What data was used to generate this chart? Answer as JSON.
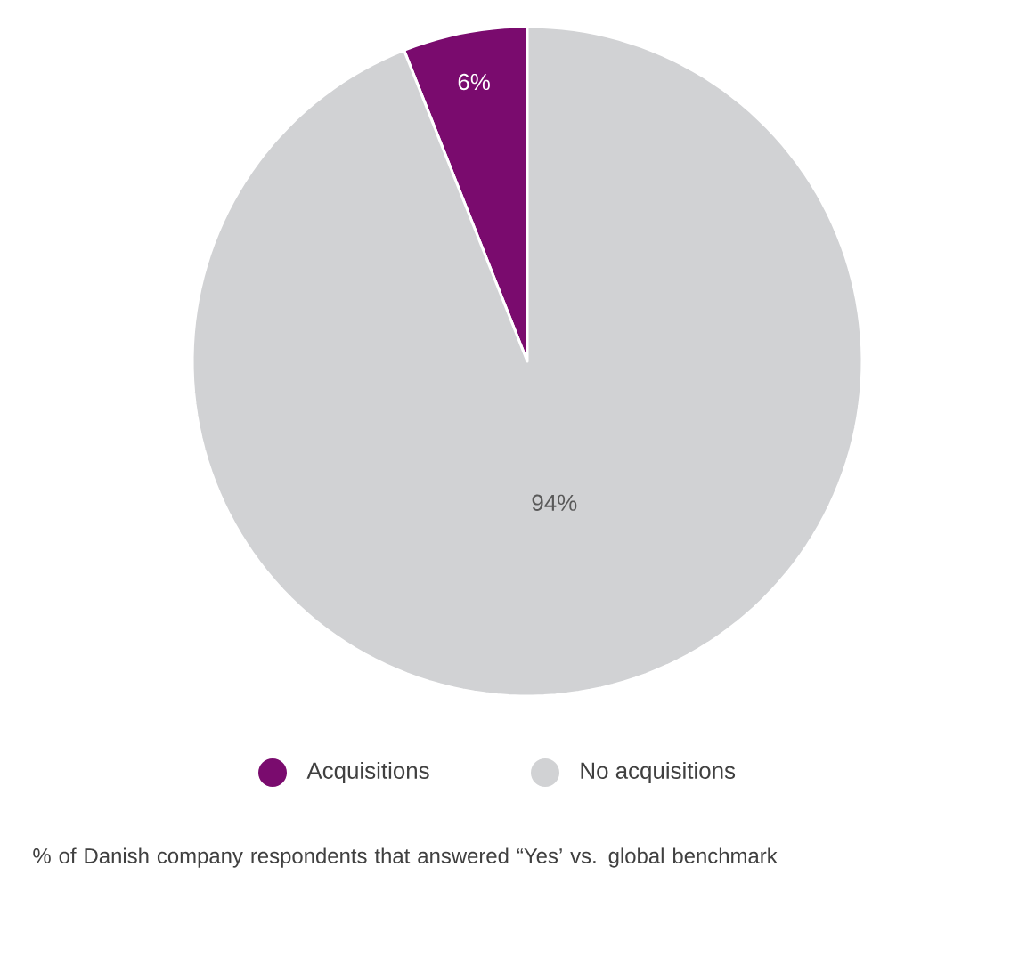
{
  "chart_data": {
    "type": "pie",
    "categories": [
      "Acquisitions",
      "No acquisitions"
    ],
    "values": [
      6,
      94
    ],
    "colors": [
      "#7a0b6e",
      "#d1d2d4"
    ],
    "value_labels": [
      "6%",
      "94%"
    ],
    "legend": "bottom",
    "annotations": [
      "% of Danish company respondents that answered “Yes’ vs. global benchmark"
    ]
  }
}
